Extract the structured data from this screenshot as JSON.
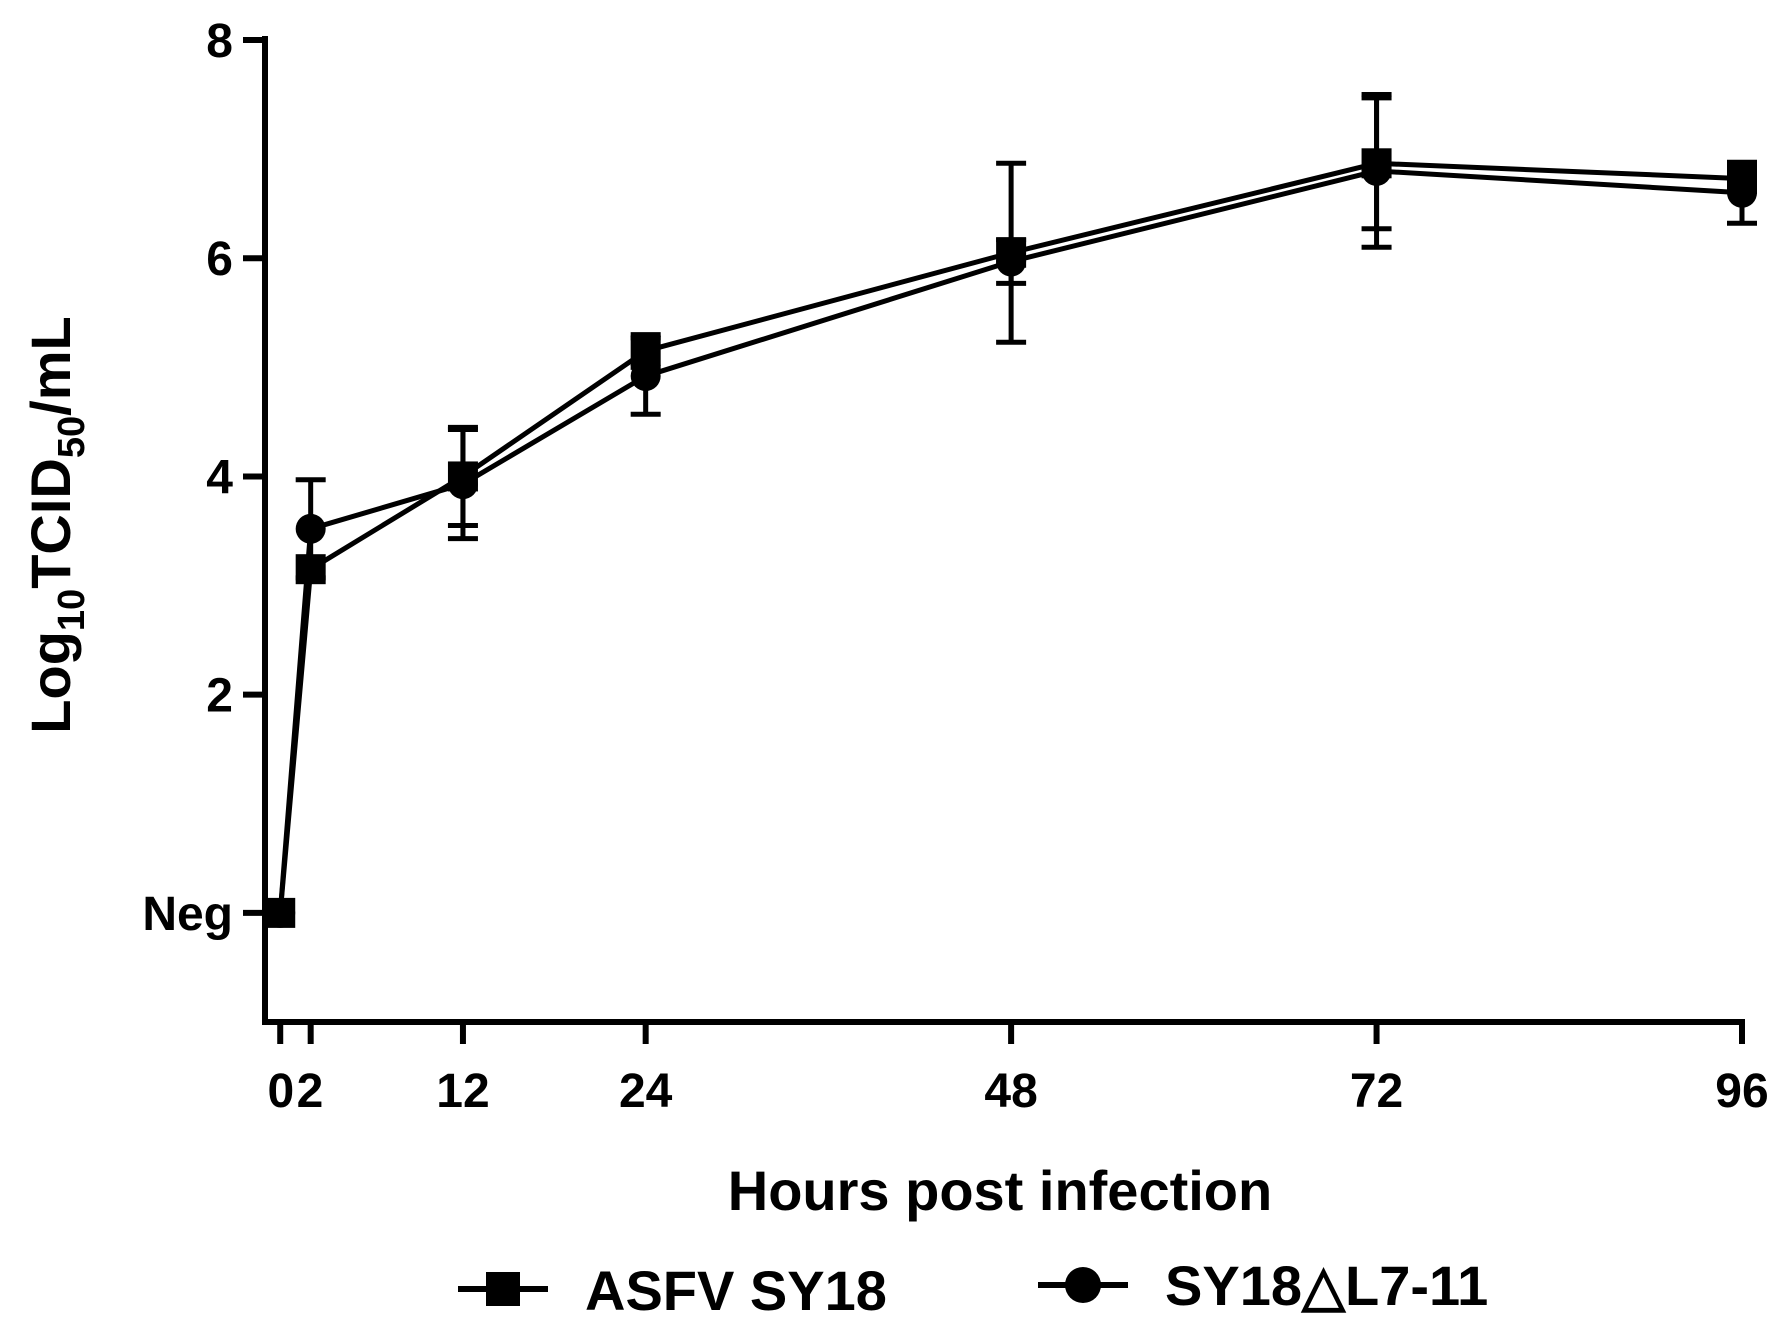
{
  "chart_data": {
    "type": "line",
    "x": [
      0,
      2,
      12,
      24,
      48,
      72,
      96
    ],
    "x_tick_values": [
      0,
      2,
      12,
      24,
      48,
      72,
      96
    ],
    "x_tick_labels": [
      "0",
      "2",
      "12",
      "24",
      "48",
      "72",
      "96"
    ],
    "xlabel": "Hours post infection",
    "xlim": [
      -1,
      96
    ],
    "ylabel": {
      "prefix": "Log",
      "sub1": "10",
      "middle": "TCID",
      "sub2": "50",
      "suffix": "/mL"
    },
    "ylim": [
      -1,
      8
    ],
    "y_tick_values": [
      0,
      2,
      4,
      6,
      8
    ],
    "y_tick_labels": [
      "Neg",
      "2",
      "4",
      "6",
      "8"
    ],
    "grid": false,
    "legend_position": "bottom",
    "series": [
      {
        "name": "ASFV SY18",
        "marker": "square",
        "values": [
          0,
          3.15,
          4.0,
          5.15,
          6.05,
          6.87,
          6.73
        ],
        "errors": [
          0,
          0.0,
          0.45,
          0.15,
          0.82,
          0.6,
          0.12
        ]
      },
      {
        "name": "SY18△L7-11",
        "marker": "circle",
        "values": [
          0,
          3.52,
          3.93,
          4.92,
          5.97,
          6.8,
          6.6
        ],
        "errors": [
          0,
          0.45,
          0.5,
          0.35,
          0.2,
          0.7,
          0.28
        ]
      }
    ],
    "colors": {
      "line": "#000000",
      "marker": "#000000",
      "axis": "#000000"
    }
  }
}
